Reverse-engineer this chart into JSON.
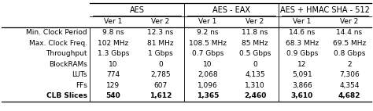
{
  "col_groups": [
    {
      "label": "AES",
      "cols": [
        1,
        2
      ]
    },
    {
      "label": "AES - EAX",
      "cols": [
        3,
        4
      ]
    },
    {
      "label": "AES + HMAC SHA - 512",
      "cols": [
        5,
        6
      ]
    }
  ],
  "sub_headers": [
    "Ver 1",
    "Ver 2",
    "Ver 1",
    "Ver 2",
    "Ver 1",
    "Ver 2"
  ],
  "row_labels": [
    "Min. Clock Period",
    "Max. Clock Freq.",
    "Throughput",
    "BlockRAMs",
    "LUTs",
    "FFs",
    "CLB Slices"
  ],
  "row_bold": [
    false,
    false,
    false,
    false,
    false,
    false,
    true
  ],
  "cell_data": [
    [
      "9.8 ns",
      "12.3 ns",
      "9.2 ns",
      "11.8 ns",
      "14.6 ns",
      "14.4 ns"
    ],
    [
      "102 MHz",
      "81 MHz",
      "108.5 MHz",
      "85 MHz",
      "68.3 MHz",
      "69.5 MHz"
    ],
    [
      "1.3 Gbps",
      "1 Gbps",
      "0.7 Gbps",
      "0.5 Gbps",
      "0.9 Gbps",
      "0.8 Gbps"
    ],
    [
      "10",
      "0",
      "10",
      "0",
      "12",
      "2"
    ],
    [
      "774",
      "2,785",
      "2,068",
      "4,135",
      "5,091",
      "7,306"
    ],
    [
      "129",
      "607",
      "1,096",
      "1,310",
      "3,866",
      "4,354"
    ],
    [
      "540",
      "1,612",
      "1,365",
      "2,460",
      "3,610",
      "4,682"
    ]
  ],
  "background_color": "#ffffff",
  "text_color": "#000000",
  "line_color": "#000000",
  "figsize": [
    4.74,
    1.42
  ],
  "dpi": 100,
  "fontsize_group": 7.0,
  "fontsize_sub": 6.5,
  "fontsize_cell": 6.5
}
